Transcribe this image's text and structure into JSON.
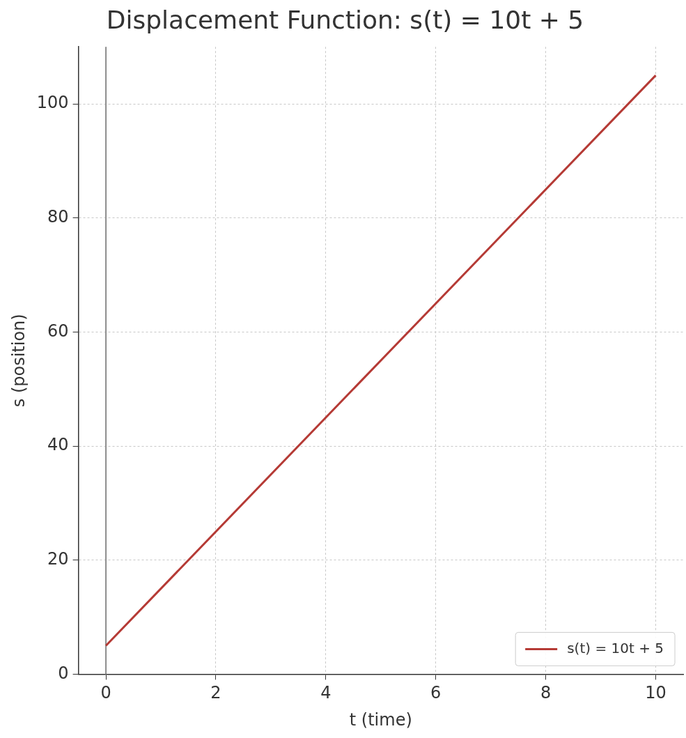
{
  "chart_data": {
    "type": "line",
    "title": "Displacement Function: s(t) = 10t + 5",
    "xlabel": "t (time)",
    "ylabel": "s (position)",
    "x": [
      0,
      10
    ],
    "series": [
      {
        "name": "s(t) = 10t + 5",
        "color": "#b53a35",
        "values": [
          5,
          105
        ]
      }
    ],
    "xlim": [
      -0.5,
      10.5
    ],
    "xticks": [
      0,
      2,
      4,
      6,
      8,
      10
    ],
    "ylim": [
      0,
      110
    ],
    "yticks": [
      0,
      20,
      40,
      60,
      80,
      100
    ],
    "ref_lines": [
      {
        "axis": "x",
        "value": 0,
        "color": "#8c8c8c"
      }
    ],
    "grid": true,
    "legend": "bottom right",
    "marker": "none",
    "line_style": "solid"
  }
}
